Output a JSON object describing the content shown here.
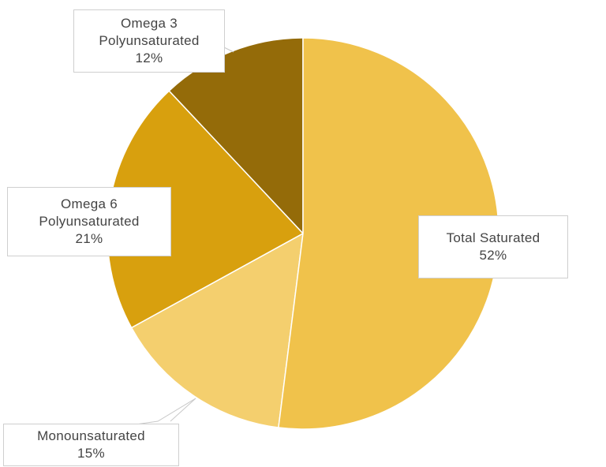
{
  "chart_data": {
    "type": "pie",
    "categories": [
      "Total Saturated",
      "Monounsaturated",
      "Omega 6 Polyunsaturated",
      "Omega 3 Polyunsaturated"
    ],
    "values": [
      52,
      15,
      21,
      12
    ],
    "value_labels": [
      "52%",
      "15%",
      "21%",
      "12%"
    ],
    "colors": [
      "#f0c24b",
      "#f4cf6e",
      "#d8a00e",
      "#946b09"
    ]
  }
}
